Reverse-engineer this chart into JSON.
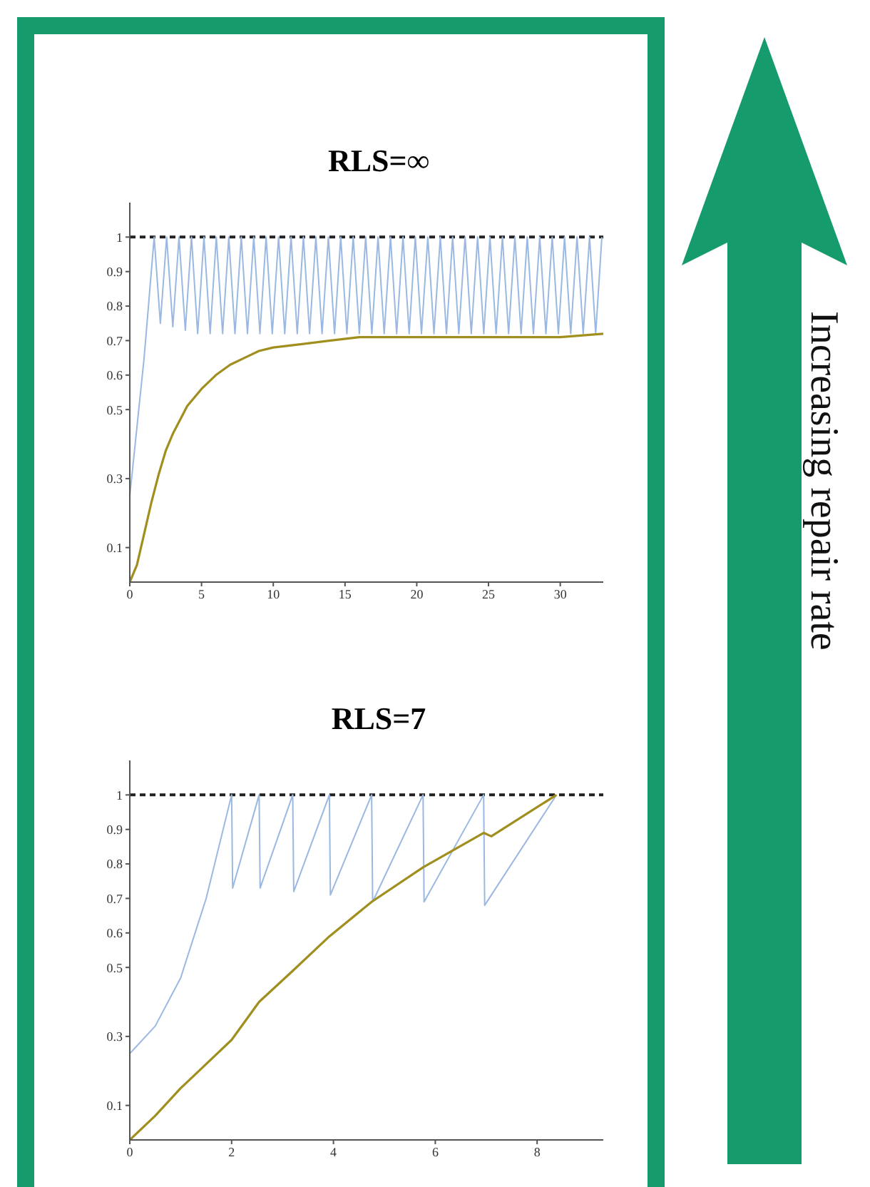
{
  "chart_data": [
    {
      "type": "line",
      "title": "RLS=∞",
      "xlim": [
        0,
        33
      ],
      "xticks": [
        0,
        5,
        10,
        15,
        20,
        25,
        30
      ],
      "ylim": [
        0,
        1.1
      ],
      "yticks": [
        0.1,
        0.3,
        0.5,
        0.6,
        0.7,
        0.8,
        0.9,
        1
      ],
      "marker": "none",
      "series": [
        {
          "color": "#9bb8e3",
          "x": [
            0,
            0.5,
            1,
            1.3,
            1.7,
            2.13,
            2.57,
            3.0,
            3.43,
            3.87,
            4.3,
            4.73,
            5.17,
            5.6,
            6.03,
            6.47,
            6.9,
            7.33,
            7.77,
            8.2,
            8.64,
            9.07,
            9.5,
            9.93,
            10.37,
            10.8,
            11.24,
            11.67,
            12.1,
            12.53,
            12.97,
            13.4,
            13.84,
            14.27,
            14.7,
            15.13,
            15.57,
            16.0,
            16.44,
            16.87,
            17.3,
            17.73,
            18.17,
            18.6,
            19.04,
            19.47,
            19.9,
            20.33,
            20.77,
            21.2,
            21.64,
            22.07,
            22.5,
            22.93,
            23.37,
            23.8,
            24.24,
            24.67,
            25.1,
            25.53,
            25.97,
            26.4,
            26.84,
            27.27,
            27.7,
            28.13,
            28.57,
            29.0,
            29.44,
            29.87,
            30.3,
            30.73,
            31.17,
            31.6,
            32.04,
            32.47,
            32.9
          ],
          "values": [
            0.25,
            0.45,
            0.65,
            0.8,
            1,
            0.75,
            1,
            0.74,
            1,
            0.73,
            1,
            0.72,
            1,
            0.72,
            1,
            0.72,
            1,
            0.72,
            1,
            0.72,
            1,
            0.72,
            1,
            0.72,
            1,
            0.72,
            1,
            0.72,
            1,
            0.72,
            1,
            0.72,
            1,
            0.72,
            1,
            0.72,
            1,
            0.72,
            1,
            0.72,
            1,
            0.72,
            1,
            0.72,
            1,
            0.72,
            1,
            0.72,
            1,
            0.72,
            1,
            0.72,
            1,
            0.72,
            1,
            0.72,
            1,
            0.72,
            1,
            0.72,
            1,
            0.72,
            1,
            0.72,
            1,
            0.72,
            1,
            0.72,
            1,
            0.72,
            1,
            0.72,
            1,
            0.72,
            1,
            0.72,
            1
          ]
        },
        {
          "color": "#a08f1e",
          "x": [
            0,
            0.5,
            1,
            1.5,
            2,
            2.5,
            3,
            3.5,
            4,
            5,
            6,
            7,
            8,
            9,
            10,
            12,
            14,
            16,
            20,
            25,
            30,
            33
          ],
          "values": [
            0,
            0.05,
            0.14,
            0.23,
            0.31,
            0.38,
            0.43,
            0.47,
            0.51,
            0.56,
            0.6,
            0.63,
            0.65,
            0.67,
            0.68,
            0.69,
            0.7,
            0.71,
            0.71,
            0.71,
            0.71,
            0.72
          ]
        }
      ],
      "ref_lines": [
        {
          "axis": "y",
          "value": 1,
          "color": "#222222",
          "line_style": "dashed"
        }
      ],
      "annotations": [
        "Increasing repair rate"
      ]
    },
    {
      "type": "line",
      "title": "RLS=7",
      "xlim": [
        0,
        9.3
      ],
      "xticks": [
        0,
        2,
        4,
        6,
        8
      ],
      "ylim": [
        0,
        1.1
      ],
      "yticks": [
        0.1,
        0.3,
        0.5,
        0.6,
        0.7,
        0.8,
        0.9,
        1
      ],
      "marker": "none",
      "series": [
        {
          "color": "#9bb8e3",
          "x": [
            0,
            0.5,
            1,
            1.5,
            2.0,
            2.02,
            2.54,
            2.56,
            3.2,
            3.22,
            3.92,
            3.94,
            4.75,
            4.77,
            5.76,
            5.78,
            6.95,
            6.97,
            8.38
          ],
          "values": [
            0.25,
            0.33,
            0.47,
            0.7,
            1,
            0.73,
            1,
            0.73,
            1,
            0.72,
            1,
            0.71,
            1,
            0.69,
            1,
            0.69,
            1,
            0.68,
            1
          ]
        },
        {
          "color": "#a08f1e",
          "x": [
            0,
            0.5,
            1,
            1.5,
            2,
            2.54,
            3.2,
            3.92,
            4.75,
            5.76,
            6.95,
            7.1,
            8.38
          ],
          "values": [
            0,
            0.07,
            0.15,
            0.22,
            0.29,
            0.4,
            0.49,
            0.59,
            0.69,
            0.79,
            0.89,
            0.88,
            1
          ]
        }
      ],
      "ref_lines": [
        {
          "axis": "y",
          "value": 1,
          "color": "#222222",
          "line_style": "dashed"
        }
      ]
    }
  ]
}
